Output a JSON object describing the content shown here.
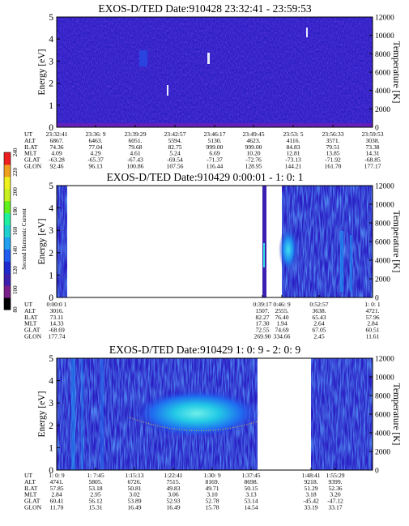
{
  "colorbar": {
    "label": "Second Harmonic Current",
    "ticks": [
      "80",
      "100",
      "120",
      "140",
      "160",
      "180",
      "200",
      "220",
      "240"
    ],
    "colors": [
      "#000000",
      "#7a1f8a",
      "#3d1fb0",
      "#1f2ad0",
      "#1f5cf0",
      "#1fa0f0",
      "#1fd0d0",
      "#1ff0a0",
      "#60f01f",
      "#c8f01f",
      "#f0f01f",
      "#f0a01f",
      "#f01f1f"
    ]
  },
  "ephemeris_labels": [
    "UT",
    "ALT",
    "ILAT",
    "MLT",
    "GLAT",
    "GLON"
  ],
  "panels": [
    {
      "title": "EXOS-D/TED   Date:910428  23:32:41 - 23:59:53",
      "ylabel": "Energy [eV]",
      "y2label": "Temperature [K]",
      "yticks": [
        "0",
        "1",
        "2",
        "3",
        "4",
        "5"
      ],
      "y2ticks": [
        "0",
        "2000",
        "4000",
        "6000",
        "8000",
        "10000",
        "12000"
      ],
      "ephemeris": [
        [
          "23:32:41",
          "6867.",
          "74.36",
          "4.09",
          "-63.28",
          "92.46"
        ],
        [
          "23:36: 9",
          "6463.",
          "77.04",
          "4.29",
          "-65.37",
          "96.13"
        ],
        [
          "23:39:29",
          "6051.",
          "79.68",
          "4.61",
          "-67.43",
          "100.86"
        ],
        [
          "23:42:57",
          "5594.",
          "82.75",
          "5.24",
          "-69.54",
          "107.56"
        ],
        [
          "23:46:17",
          "5130.",
          "999.00",
          "6.69",
          "-71.37",
          "116.44"
        ],
        [
          "23:49:45",
          "4623.",
          "999.00",
          "10.20",
          "-72.76",
          "128.95"
        ],
        [
          "23:53: 5",
          "4116.",
          "84.83",
          "12.81",
          "-73.13",
          "144.21"
        ],
        [
          "23:56:33",
          "3571.",
          "79.51",
          "13.85",
          "-71.92",
          "161.70"
        ],
        [
          "23:59:53",
          "3038.",
          "73.38",
          "14.31",
          "-68.85",
          "177.17"
        ]
      ]
    },
    {
      "title": "EXOS-D/TED   Date:910429  0:00:01 - 1: 0: 1",
      "ylabel": "Energy [eV]",
      "y2label": "Temperature [K]",
      "yticks": [
        "0",
        "1",
        "2",
        "3",
        "4",
        "5"
      ],
      "y2ticks": [
        "0",
        "2000",
        "4000",
        "6000",
        "8000",
        "10000",
        "12000"
      ],
      "ephemeris": [
        [
          "0:00:0 1",
          "3016.",
          "73.11",
          "14.33",
          "-68.69",
          "177.74"
        ],
        [
          "0:39:17",
          "1507.",
          "82.27",
          "17.30",
          "72.55",
          "269.90"
        ],
        [
          "0:46: 9",
          "2555.",
          "76.40",
          "1.94",
          "74.69",
          "334.66"
        ],
        [
          "0:52:57",
          "3638.",
          "65.43",
          "2.64",
          "67.05",
          "2.45"
        ],
        [
          "1: 0: 1",
          "4721.",
          "57.96",
          "2.84",
          "60.51",
          "11.61"
        ]
      ]
    },
    {
      "title": "EXOS-D/TED   Date:910429  1: 0: 9 - 2: 0: 9",
      "ylabel": "Energy [eV]",
      "y2label": "Temperature [K]",
      "yticks": [
        "0",
        "1",
        "2",
        "3",
        "4",
        "5"
      ],
      "y2ticks": [
        "0",
        "2000",
        "4000",
        "6000",
        "8000",
        "10000",
        "12000"
      ],
      "ephemeris": [
        [
          "1: 0: 9",
          "4741.",
          "57.85",
          "2.84",
          "60.41",
          "11.70"
        ],
        [
          "1: 7:45",
          "5805.",
          "53.18",
          "2.95",
          "56.12",
          "15.31"
        ],
        [
          "1:15:13",
          "6726.",
          "50.81",
          "3.02",
          "53.89",
          "16.49"
        ],
        [
          "1:22:41",
          "7515.",
          "49.83",
          "3.06",
          "52.93",
          "16.49"
        ],
        [
          "1:30: 9",
          "8169.",
          "49.71",
          "3.10",
          "52.78",
          "15.78"
        ],
        [
          "1:37:45",
          "8698.",
          "50.15",
          "3.13",
          "53.14",
          "14.54"
        ],
        [
          "1:48:41",
          "9218.",
          "51.29",
          "3.18",
          "-45.42",
          "33.19"
        ],
        [
          "1:55:29",
          "9399.",
          "52.36",
          "3.20",
          "-47.12",
          "33.17"
        ]
      ]
    }
  ]
}
